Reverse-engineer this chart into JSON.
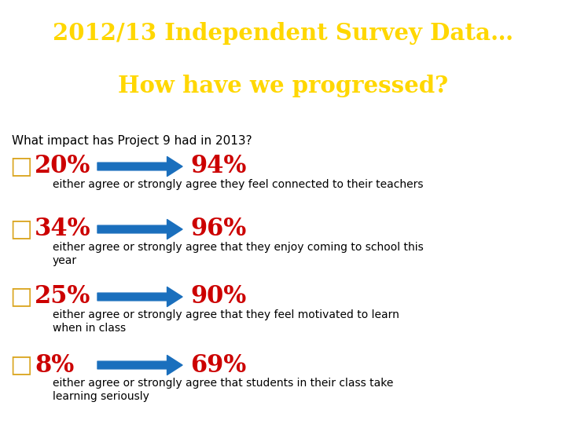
{
  "title_line1": "2012/13 Independent Survey Data…",
  "title_line2": "How have we progressed?",
  "title_color": "#FFD700",
  "title_bg": "#111111",
  "subtitle": "What impact has Project 9 had in 2013?",
  "rows": [
    {
      "before": "20%",
      "after": "94%",
      "desc": "either agree or strongly agree they feel connected to their teachers"
    },
    {
      "before": "34%",
      "after": "96%",
      "desc": "either agree or strongly agree that they enjoy coming to school this\nyear"
    },
    {
      "before": "25%",
      "after": "90%",
      "desc": "either agree or strongly agree that they feel motivated to learn\nwhen in class"
    },
    {
      "before": "8%",
      "after": "69%",
      "desc": "either agree or strongly agree that students in their class take\nlearning seriously"
    }
  ],
  "percent_color": "#cc0000",
  "arrow_color": "#1a6fbd",
  "desc_color": "#000000",
  "checkbox_color": "#DAA520",
  "body_bg": "#ffffff",
  "title_fontsize": 21,
  "subtitle_fontsize": 11,
  "percent_fontsize": 22,
  "desc_fontsize": 10
}
